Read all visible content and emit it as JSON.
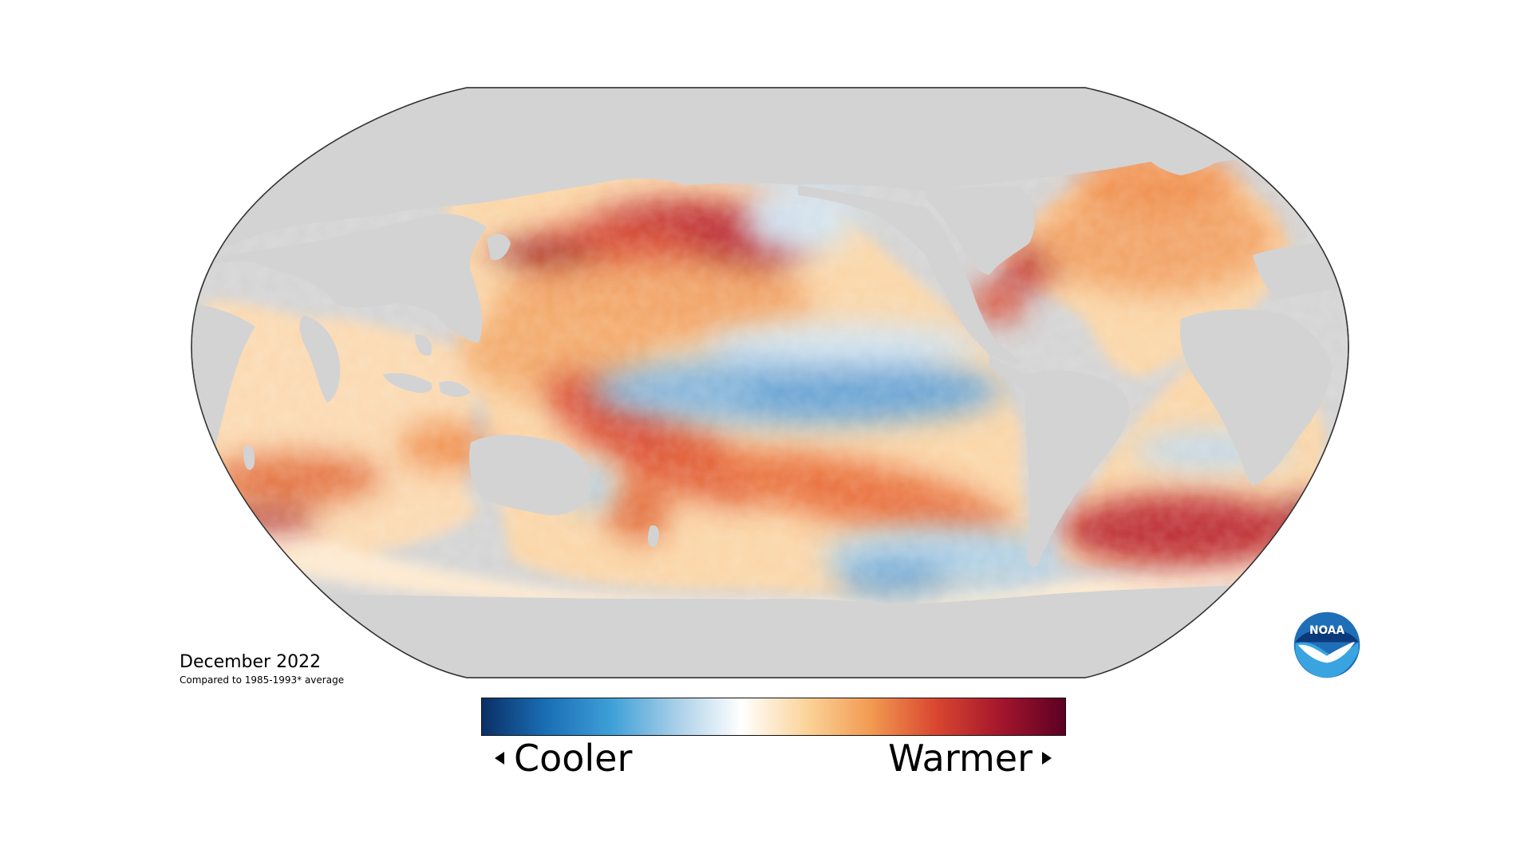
{
  "caption": {
    "title": "December 2022",
    "subtitle": "Compared to 1985-1993* average"
  },
  "legend": {
    "low_label": "Cooler",
    "high_label": "Warmer",
    "colors": [
      "#0b2f66",
      "#1a6fb5",
      "#3ea0d8",
      "#a9cfe8",
      "#ffffff",
      "#fbd49a",
      "#f29a52",
      "#d9472f",
      "#a4162c",
      "#5c0023"
    ]
  },
  "logo": {
    "text": "NOAA"
  },
  "map": {
    "land_color": "#d3d3d3",
    "border_color": "#333333"
  }
}
